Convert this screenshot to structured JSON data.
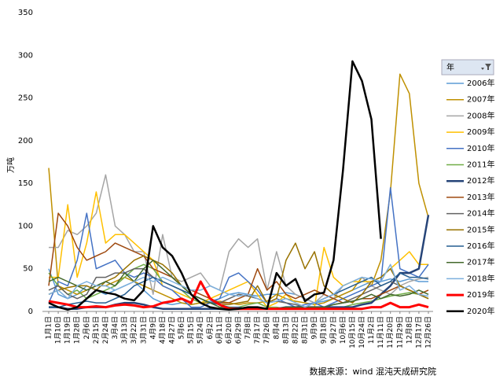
{
  "chart_data": {
    "type": "line",
    "y_label": "万吨",
    "source": "数据来源：wind 混沌天成研究院",
    "legend_title": "年",
    "ylim": [
      0,
      350
    ],
    "yticks": [
      0,
      50,
      100,
      150,
      200,
      250,
      300,
      350
    ],
    "categories": [
      "1月1日",
      "1月10日",
      "1月19日",
      "1月28日",
      "2月6日",
      "2月15日",
      "2月24日",
      "3月4日",
      "3月13日",
      "3月22日",
      "3月31日",
      "4月9日",
      "4月18日",
      "4月27日",
      "5月6日",
      "5月15日",
      "5月24日",
      "6月2日",
      "6月11日",
      "6月20日",
      "6月29日",
      "7月8日",
      "7月17日",
      "7月26日",
      "8月4日",
      "8月13日",
      "8月22日",
      "8月31日",
      "9月9日",
      "9月18日",
      "9月27日",
      "10月6日",
      "10月15日",
      "10月24日",
      "11月2日",
      "11月11日",
      "11月20日",
      "11月29日",
      "12月8日",
      "12月17日",
      "12月26日"
    ],
    "series": [
      {
        "name": "2006年",
        "color": "#5b9bd5",
        "width": 1.5,
        "values": [
          50,
          20,
          15,
          20,
          30,
          25,
          20,
          25,
          30,
          35,
          25,
          15,
          10,
          8,
          10,
          8,
          10,
          12,
          15,
          20,
          22,
          20,
          18,
          20,
          20,
          22,
          20,
          15,
          10,
          12,
          15,
          20,
          25,
          30,
          35,
          35,
          38,
          35,
          38,
          35,
          35
        ]
      },
      {
        "name": "2007年",
        "color": "#bf9000",
        "width": 1.5,
        "values": [
          168,
          30,
          25,
          20,
          25,
          30,
          30,
          35,
          40,
          35,
          30,
          25,
          20,
          15,
          10,
          8,
          10,
          10,
          12,
          10,
          8,
          10,
          10,
          12,
          20,
          15,
          12,
          10,
          8,
          10,
          15,
          20,
          25,
          40,
          30,
          60,
          140,
          278,
          255,
          150,
          110
        ]
      },
      {
        "name": "2008年",
        "color": "#a5a5a5",
        "width": 1.5,
        "values": [
          75,
          75,
          95,
          90,
          100,
          115,
          160,
          100,
          90,
          70,
          70,
          20,
          90,
          40,
          35,
          40,
          45,
          30,
          25,
          70,
          85,
          75,
          85,
          25,
          70,
          30,
          20,
          15,
          10,
          20,
          15,
          30,
          35,
          40,
          30,
          25,
          20,
          30,
          35,
          38,
          40
        ]
      },
      {
        "name": "2009年",
        "color": "#ffc000",
        "width": 1.5,
        "values": [
          40,
          40,
          125,
          40,
          80,
          140,
          80,
          90,
          90,
          80,
          70,
          60,
          30,
          25,
          20,
          15,
          10,
          15,
          20,
          25,
          30,
          35,
          20,
          5,
          10,
          20,
          10,
          5,
          5,
          75,
          40,
          30,
          35,
          35,
          35,
          40,
          50,
          60,
          70,
          55,
          55
        ]
      },
      {
        "name": "2010年",
        "color": "#4472c4",
        "width": 1.5,
        "values": [
          10,
          35,
          30,
          60,
          115,
          50,
          55,
          60,
          45,
          40,
          45,
          40,
          30,
          25,
          15,
          5,
          5,
          10,
          15,
          40,
          45,
          35,
          25,
          10,
          15,
          10,
          5,
          8,
          10,
          5,
          10,
          15,
          20,
          25,
          30,
          35,
          145,
          50,
          45,
          40,
          55
        ]
      },
      {
        "name": "2011年",
        "color": "#70ad47",
        "width": 1.5,
        "values": [
          45,
          30,
          20,
          25,
          15,
          20,
          25,
          30,
          40,
          50,
          55,
          50,
          35,
          30,
          25,
          15,
          10,
          5,
          3,
          3,
          5,
          8,
          10,
          5,
          5,
          3,
          3,
          3,
          3,
          3,
          3,
          5,
          8,
          10,
          12,
          15,
          18,
          20,
          22,
          20,
          15
        ]
      },
      {
        "name": "2012年",
        "color": "#264478",
        "width": 2.5,
        "values": [
          5,
          5,
          3,
          3,
          5,
          5,
          5,
          8,
          10,
          10,
          8,
          5,
          3,
          3,
          3,
          3,
          3,
          3,
          3,
          3,
          3,
          3,
          3,
          3,
          3,
          5,
          5,
          5,
          5,
          5,
          5,
          5,
          5,
          8,
          10,
          20,
          30,
          45,
          45,
          50,
          113
        ]
      },
      {
        "name": "2013年",
        "color": "#9e480e",
        "width": 1.5,
        "values": [
          30,
          115,
          100,
          75,
          60,
          65,
          70,
          80,
          75,
          70,
          65,
          50,
          45,
          40,
          30,
          25,
          20,
          15,
          10,
          10,
          15,
          20,
          50,
          25,
          35,
          20,
          15,
          20,
          25,
          20,
          15,
          10,
          12,
          15,
          15,
          20,
          25,
          30,
          25,
          20,
          25
        ]
      },
      {
        "name": "2014年",
        "color": "#636363",
        "width": 1.5,
        "values": [
          25,
          30,
          20,
          15,
          20,
          40,
          40,
          45,
          45,
          50,
          50,
          40,
          35,
          30,
          25,
          20,
          15,
          10,
          10,
          15,
          20,
          18,
          15,
          10,
          12,
          10,
          8,
          5,
          5,
          5,
          8,
          10,
          15,
          20,
          25,
          30,
          35,
          30,
          25,
          20,
          15
        ]
      },
      {
        "name": "2015年",
        "color": "#997300",
        "width": 1.5,
        "values": [
          20,
          25,
          28,
          30,
          30,
          25,
          35,
          40,
          50,
          60,
          65,
          60,
          55,
          45,
          30,
          20,
          15,
          10,
          8,
          8,
          10,
          12,
          30,
          10,
          15,
          60,
          80,
          50,
          70,
          30,
          20,
          15,
          10,
          20,
          35,
          40,
          50,
          30,
          25,
          20,
          15
        ]
      },
      {
        "name": "2016年",
        "color": "#255e91",
        "width": 1.5,
        "values": [
          5,
          5,
          8,
          10,
          12,
          10,
          10,
          15,
          20,
          30,
          35,
          40,
          35,
          30,
          25,
          20,
          15,
          10,
          8,
          5,
          5,
          3,
          3,
          3,
          3,
          3,
          5,
          5,
          10,
          15,
          20,
          25,
          30,
          35,
          40,
          30,
          35,
          45,
          40,
          40,
          38
        ]
      },
      {
        "name": "2017年",
        "color": "#43682b",
        "width": 1.5,
        "values": [
          35,
          40,
          35,
          30,
          25,
          30,
          35,
          30,
          45,
          35,
          50,
          60,
          50,
          40,
          30,
          20,
          15,
          10,
          5,
          5,
          3,
          3,
          3,
          3,
          3,
          5,
          5,
          5,
          5,
          5,
          8,
          10,
          12,
          15,
          20,
          15,
          20,
          18,
          20,
          25,
          20
        ]
      },
      {
        "name": "2018年",
        "color": "#7cafdd",
        "width": 1.5,
        "values": [
          20,
          25,
          15,
          30,
          35,
          30,
          30,
          25,
          30,
          35,
          40,
          35,
          40,
          35,
          30,
          25,
          25,
          30,
          25,
          20,
          18,
          20,
          15,
          10,
          12,
          15,
          10,
          5,
          10,
          15,
          20,
          30,
          35,
          40,
          38,
          35,
          55,
          25,
          30,
          20,
          18
        ]
      },
      {
        "name": "2019年",
        "color": "#ff0000",
        "width": 3,
        "values": [
          12,
          10,
          8,
          5,
          5,
          6,
          5,
          7,
          8,
          7,
          5,
          6,
          10,
          12,
          15,
          10,
          35,
          15,
          8,
          3,
          3,
          3,
          3,
          3,
          3,
          3,
          3,
          3,
          3,
          3,
          3,
          3,
          3,
          3,
          5,
          5,
          10,
          5,
          5,
          8,
          5
        ]
      },
      {
        "name": "2020年",
        "color": "#000000",
        "width": 2.5,
        "values": [
          10,
          5,
          2,
          5,
          15,
          25,
          22,
          20,
          15,
          13,
          25,
          100,
          75,
          65,
          45,
          20,
          10,
          5,
          3,
          2,
          3,
          5,
          5,
          3,
          45,
          30,
          38,
          12,
          20,
          22,
          60,
          165,
          293,
          270,
          225,
          85,
          null,
          null,
          null,
          null,
          null
        ]
      }
    ]
  }
}
